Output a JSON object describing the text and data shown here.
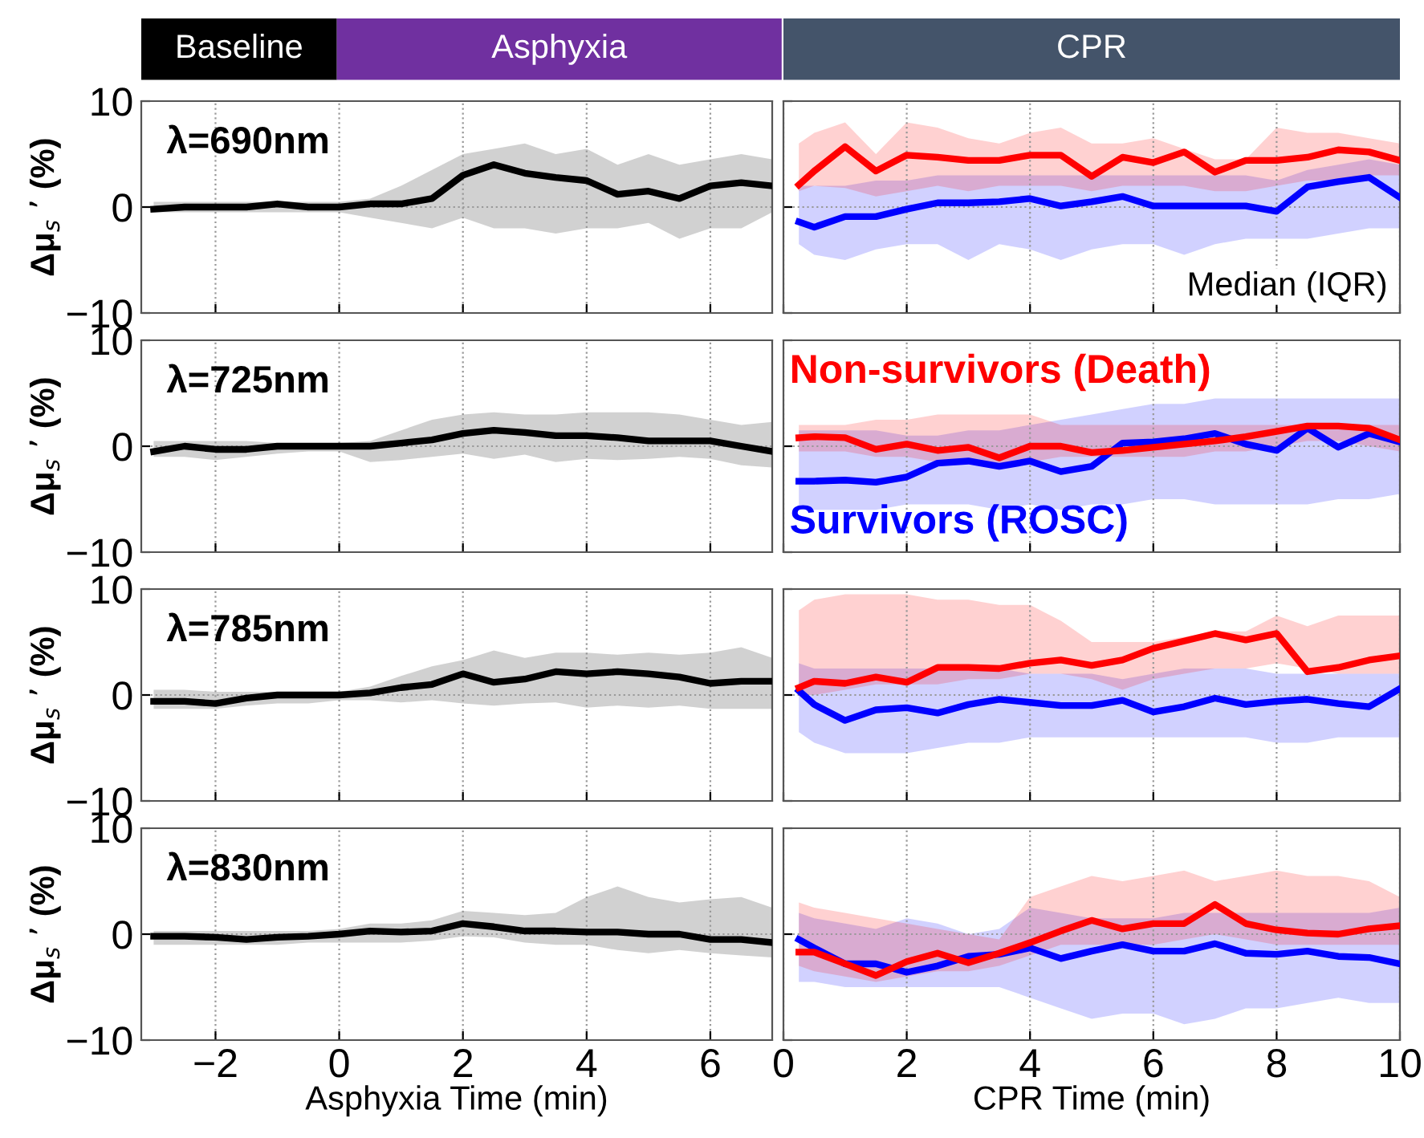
{
  "chart_data": [
    {
      "type": "line",
      "annotations": [
        "Baseline",
        "Asphyxia",
        "λ=690nm"
      ],
      "ylabel": "Δμ$_{s}$ ’ (%)",
      "tick_labels": "y",
      "grid": true,
      "xlim": [
        -3.2,
        7
      ],
      "xticks": [
        {
          "value": -2,
          "label": null
        },
        {
          "value": 0,
          "label": null
        },
        {
          "value": 2,
          "label": null
        },
        {
          "value": 4,
          "label": null
        },
        {
          "value": 6,
          "label": null
        }
      ],
      "ylim": [
        -10,
        10
      ],
      "yticks": [
        {
          "value": -10,
          "label": "−10"
        },
        0,
        10
      ],
      "x": [
        -3,
        -2.5,
        -2,
        -1.5,
        -1,
        -0.5,
        0,
        0.5,
        1,
        1.5,
        2,
        2.5,
        3,
        3.5,
        4,
        4.5,
        5,
        5.5,
        6,
        6.5,
        7
      ],
      "series": [
        {
          "color": "#000000",
          "values": [
            -0.2,
            0,
            0,
            0,
            0.3,
            0,
            0,
            0.3,
            0.3,
            0.8,
            3,
            4,
            3.2,
            2.8,
            2.5,
            1.2,
            1.5,
            0.8,
            2,
            2.3,
            2
          ],
          "upper": [
            0.5,
            0.5,
            0.5,
            0.5,
            0.5,
            0.5,
            0.5,
            0.8,
            2,
            3.5,
            5,
            5.5,
            6,
            5,
            5.5,
            4,
            5,
            4,
            4.5,
            5,
            4.5
          ],
          "lower": [
            -0.5,
            -0.5,
            -0.5,
            -0.5,
            -0.5,
            -0.5,
            -0.5,
            -1,
            -1.5,
            -2,
            -1,
            -2,
            -2,
            -2.5,
            -2,
            -2,
            -1.5,
            -3,
            -2,
            -2,
            -0.5
          ]
        }
      ]
    },
    {
      "type": "line",
      "annotations": [
        "CPR",
        "Median (IQR)"
      ],
      "tick_labels": false,
      "grid": true,
      "xlim": [
        0,
        10
      ],
      "xticks": [
        {
          "value": 0,
          "label": null
        },
        {
          "value": 2,
          "label": null
        },
        {
          "value": 4,
          "label": null
        },
        {
          "value": 6,
          "label": null
        },
        {
          "value": 8,
          "label": null
        },
        {
          "value": 10,
          "label": null
        }
      ],
      "ylim": [
        -10,
        10
      ],
      "yticks": [
        {
          "value": -10,
          "label": null
        },
        {
          "value": 0,
          "label": null
        },
        {
          "value": 10,
          "label": null
        }
      ],
      "x": [
        0.25,
        0.5,
        1,
        1.5,
        2,
        2.5,
        3,
        3.5,
        4,
        4.5,
        5,
        5.5,
        6,
        6.5,
        7,
        7.5,
        8,
        8.5,
        9,
        9.5,
        10
      ],
      "series": [
        {
          "color": "#0000ff",
          "values": [
            -1.4,
            -1.9,
            -0.9,
            -0.9,
            -0.2,
            0.4,
            0.4,
            0.5,
            0.8,
            0.1,
            0.5,
            1.0,
            0.1,
            0.1,
            0.1,
            0.1,
            -0.4,
            1.9,
            2.4,
            2.8,
            0.9
          ],
          "upper": [
            2,
            2,
            2,
            2.5,
            2.5,
            3,
            3,
            3,
            3,
            3,
            3,
            3,
            3,
            3,
            3,
            3,
            2.5,
            3.5,
            4,
            4.5,
            4
          ],
          "lower": [
            -3.5,
            -4.5,
            -5,
            -4,
            -3.5,
            -3.5,
            -5,
            -3.5,
            -4,
            -5,
            -4,
            -3.5,
            -3.5,
            -4.5,
            -3.5,
            -3,
            -3,
            -3,
            -2.5,
            -2,
            -2
          ]
        },
        {
          "color": "#ff0000",
          "values": [
            2.1,
            3.4,
            5.7,
            3.4,
            4.9,
            4.7,
            4.4,
            4.4,
            4.9,
            4.9,
            2.9,
            4.7,
            4.2,
            5.2,
            3.3,
            4.4,
            4.4,
            4.7,
            5.4,
            5.2,
            4.4
          ],
          "upper": [
            6,
            7,
            8,
            5,
            8,
            7.5,
            6.5,
            6,
            7,
            7.5,
            6,
            6,
            6.5,
            5.5,
            4.5,
            4.5,
            7.5,
            7,
            7,
            6.5,
            6
          ],
          "lower": [
            1.5,
            2,
            1.8,
            1,
            1.5,
            2,
            1.5,
            2,
            2,
            2,
            1.5,
            2,
            2,
            2,
            1.5,
            1.5,
            2,
            2.5,
            2.5,
            3,
            3
          ]
        }
      ]
    },
    {
      "type": "line",
      "annotations": [
        "λ=725nm"
      ],
      "ylabel": "Δμ$_{s}$ ’ (%)",
      "tick_labels": "y",
      "grid": true,
      "xlim": [
        -3.2,
        7
      ],
      "xticks": [
        {
          "value": -2,
          "label": null
        },
        {
          "value": 0,
          "label": null
        },
        {
          "value": 2,
          "label": null
        },
        {
          "value": 4,
          "label": null
        },
        {
          "value": 6,
          "label": null
        }
      ],
      "ylim": [
        -10,
        10
      ],
      "yticks": [
        {
          "value": -10,
          "label": "−10"
        },
        0,
        10
      ],
      "x": [
        -3,
        -2.5,
        -2,
        -1.5,
        -1,
        -0.5,
        0,
        0.5,
        1,
        1.5,
        2,
        2.5,
        3,
        3.5,
        4,
        4.5,
        5,
        5.5,
        6,
        6.5,
        7
      ],
      "series": [
        {
          "color": "#000000",
          "values": [
            -0.5,
            0,
            -0.3,
            -0.3,
            0,
            0,
            0,
            0,
            0.3,
            0.6,
            1.2,
            1.5,
            1.3,
            1,
            1,
            0.8,
            0.5,
            0.5,
            0.5,
            0,
            -0.5
          ],
          "upper": [
            0.5,
            0.5,
            0.5,
            0.5,
            0.3,
            0.3,
            0.3,
            0.5,
            1.5,
            2.5,
            3,
            3.2,
            3,
            3,
            3.2,
            3.2,
            3.2,
            3,
            2.5,
            2,
            2.3
          ],
          "lower": [
            -1,
            -1,
            -1.3,
            -1,
            -0.7,
            -0.5,
            -0.5,
            -1.5,
            -1.3,
            -1,
            -0.7,
            -1.2,
            -0.8,
            -1.5,
            -1.2,
            -1.3,
            -1.2,
            -1,
            -1.2,
            -1.8,
            -2
          ]
        }
      ]
    },
    {
      "type": "line",
      "tick_labels": false,
      "grid": true,
      "xlim": [
        0,
        10
      ],
      "xticks": [
        {
          "value": 0,
          "label": null
        },
        {
          "value": 2,
          "label": null
        },
        {
          "value": 4,
          "label": null
        },
        {
          "value": 6,
          "label": null
        },
        {
          "value": 8,
          "label": null
        },
        {
          "value": 10,
          "label": null
        }
      ],
      "ylim": [
        -10,
        10
      ],
      "yticks": [
        {
          "value": -10,
          "label": null
        },
        {
          "value": 0,
          "label": null
        },
        {
          "value": 10,
          "label": null
        }
      ],
      "x": [
        0.25,
        0.5,
        1,
        1.5,
        2,
        2.5,
        3,
        3.5,
        4,
        4.5,
        5,
        5.5,
        6,
        6.5,
        7,
        7.5,
        8,
        8.5,
        9,
        9.5,
        10
      ],
      "series": [
        {
          "name": "Survivors (ROSC)",
          "color": "#0000ff",
          "values": [
            -3.3,
            -3.3,
            -3.2,
            -3.4,
            -2.9,
            -1.6,
            -1.4,
            -1.9,
            -1.4,
            -2.4,
            -1.9,
            0.3,
            0.4,
            0.7,
            1.2,
            0.2,
            -0.4,
            1.7,
            -0.1,
            1.2,
            0.4
          ],
          "upper": [
            1.5,
            1.5,
            1.5,
            1.5,
            1,
            1,
            1.5,
            1.5,
            2,
            2.5,
            3,
            3.5,
            4,
            4,
            4.5,
            4.5,
            4.5,
            4.5,
            4.5,
            4.5,
            4.5
          ],
          "lower": [
            -6,
            -6,
            -6,
            -6,
            -5.5,
            -5.5,
            -5.5,
            -6,
            -5.5,
            -6,
            -5.5,
            -5.5,
            -5,
            -5,
            -5.5,
            -5.5,
            -5.5,
            -5.5,
            -5,
            -5,
            -4.5
          ]
        },
        {
          "name": "Non-survivors (Death)",
          "color": "#ff0000",
          "values": [
            0.8,
            0.9,
            0.8,
            -0.3,
            0.2,
            -0.4,
            -0.1,
            -1.1,
            0,
            0,
            -0.6,
            -0.4,
            -0.1,
            0.2,
            0.5,
            0.9,
            1.4,
            1.9,
            1.9,
            1.7,
            0.6
          ],
          "upper": [
            2,
            2,
            2,
            2.5,
            2.5,
            3,
            3,
            3,
            3,
            2,
            2,
            2,
            2,
            2,
            2,
            2,
            2,
            2,
            2,
            2,
            2
          ],
          "lower": [
            -0.5,
            -0.5,
            -0.5,
            -1,
            -1,
            -1.5,
            -1.5,
            -2,
            -1.5,
            -1,
            -1,
            -1,
            -1,
            -1,
            -0.5,
            -0.5,
            0,
            0.5,
            0.5,
            0,
            -0.5
          ]
        }
      ]
    },
    {
      "type": "line",
      "annotations": [
        "λ=785nm"
      ],
      "ylabel": "Δμ$_{s}$ ’ (%)",
      "tick_labels": "y",
      "grid": true,
      "xlim": [
        -3.2,
        7
      ],
      "xticks": [
        {
          "value": -2,
          "label": null
        },
        {
          "value": 0,
          "label": null
        },
        {
          "value": 2,
          "label": null
        },
        {
          "value": 4,
          "label": null
        },
        {
          "value": 6,
          "label": null
        }
      ],
      "ylim": [
        -10,
        10
      ],
      "yticks": [
        {
          "value": -10,
          "label": "−10"
        },
        0,
        10
      ],
      "x": [
        -3,
        -2.5,
        -2,
        -1.5,
        -1,
        -0.5,
        0,
        0.5,
        1,
        1.5,
        2,
        2.5,
        3,
        3.5,
        4,
        4.5,
        5,
        5.5,
        6,
        6.5,
        7
      ],
      "series": [
        {
          "color": "#000000",
          "values": [
            -0.6,
            -0.6,
            -0.8,
            -0.3,
            0,
            0,
            0,
            0.2,
            0.7,
            1,
            2,
            1.2,
            1.5,
            2.2,
            2,
            2.2,
            2,
            1.7,
            1.1,
            1.3,
            1.3
          ],
          "upper": [
            0.5,
            0.5,
            0.3,
            0.3,
            0.3,
            0.3,
            0.3,
            0.8,
            1.8,
            2.7,
            3.3,
            4.2,
            3.5,
            4,
            4,
            3.8,
            4,
            3.8,
            4,
            4.5,
            3.5
          ],
          "lower": [
            -1.3,
            -1.3,
            -1.3,
            -1,
            -0.8,
            -0.8,
            -0.5,
            -0.5,
            -0.7,
            -0.5,
            -0.8,
            -1,
            -0.8,
            -0.7,
            -1.2,
            -1,
            -1.2,
            -1,
            -1.3,
            -1.3,
            -1.3
          ]
        }
      ]
    },
    {
      "type": "line",
      "tick_labels": false,
      "grid": true,
      "xlim": [
        0,
        10
      ],
      "xticks": [
        {
          "value": 0,
          "label": null
        },
        {
          "value": 2,
          "label": null
        },
        {
          "value": 4,
          "label": null
        },
        {
          "value": 6,
          "label": null
        },
        {
          "value": 8,
          "label": null
        },
        {
          "value": 10,
          "label": null
        }
      ],
      "ylim": [
        -10,
        10
      ],
      "yticks": [
        {
          "value": -10,
          "label": null
        },
        {
          "value": 0,
          "label": null
        },
        {
          "value": 10,
          "label": null
        }
      ],
      "x": [
        0.25,
        0.5,
        1,
        1.5,
        2,
        2.5,
        3,
        3.5,
        4,
        4.5,
        5,
        5.5,
        6,
        6.5,
        7,
        7.5,
        8,
        8.5,
        9,
        9.5,
        10
      ],
      "series": [
        {
          "color": "#0000ff",
          "values": [
            0.4,
            -0.9,
            -2.4,
            -1.4,
            -1.2,
            -1.7,
            -0.9,
            -0.4,
            -0.7,
            -1.0,
            -1.0,
            -0.5,
            -1.6,
            -1.1,
            -0.3,
            -0.9,
            -0.6,
            -0.4,
            -0.8,
            -1.1,
            0.6
          ],
          "upper": [
            3,
            2.5,
            2.5,
            2.5,
            2.5,
            2.5,
            2.5,
            2.5,
            2,
            2,
            2,
            1.5,
            2,
            2.5,
            2.5,
            2.5,
            2,
            2,
            2,
            2,
            2
          ],
          "lower": [
            -3.5,
            -4.5,
            -5.5,
            -5.5,
            -5.5,
            -5,
            -4.5,
            -4.5,
            -4,
            -4,
            -4,
            -4,
            -4,
            -4,
            -4,
            -4,
            -4.5,
            -4.5,
            -4,
            -4,
            -4
          ]
        },
        {
          "color": "#ff0000",
          "values": [
            0.7,
            1.3,
            1.1,
            1.7,
            1.2,
            2.6,
            2.6,
            2.5,
            3.0,
            3.3,
            2.8,
            3.3,
            4.4,
            5.1,
            5.8,
            5.2,
            5.8,
            2.2,
            2.6,
            3.3,
            3.7
          ],
          "upper": [
            8,
            9,
            9.5,
            9.5,
            9.5,
            9,
            9,
            8.5,
            8.5,
            7,
            5,
            5,
            5,
            5.5,
            6,
            6,
            7.5,
            6.5,
            7.5,
            7.5,
            7.5
          ],
          "lower": [
            0,
            0,
            0.5,
            1,
            1,
            1,
            1.5,
            1.5,
            2,
            2,
            1.5,
            0.5,
            1.5,
            2,
            2.5,
            2.5,
            3,
            2.5,
            2,
            2,
            2
          ]
        }
      ]
    },
    {
      "type": "line",
      "annotations": [
        "λ=830nm"
      ],
      "ylabel": "Δμ$_{s}$ ’ (%)",
      "xlabel": "Asphyxia Time (min)",
      "grid": true,
      "xlim": [
        -3.2,
        7
      ],
      "xticks": [
        {
          "value": -2,
          "label": "−2"
        },
        0,
        2,
        4,
        6
      ],
      "ylim": [
        -10,
        10
      ],
      "yticks": [
        {
          "value": -10,
          "label": "−10"
        },
        0,
        10
      ],
      "x": [
        -3,
        -2.5,
        -2,
        -1.5,
        -1,
        -0.5,
        0,
        0.5,
        1,
        1.5,
        2,
        2.5,
        3,
        3.5,
        4,
        4.5,
        5,
        5.5,
        6,
        6.5,
        7
      ],
      "series": [
        {
          "color": "#000000",
          "values": [
            -0.2,
            -0.2,
            -0.3,
            -0.5,
            -0.3,
            -0.2,
            0,
            0.3,
            0.2,
            0.3,
            1,
            0.7,
            0.3,
            0.3,
            0.2,
            0.2,
            0,
            0,
            -0.5,
            -0.5,
            -0.8
          ],
          "upper": [
            0.3,
            0.3,
            0.3,
            0.3,
            0.3,
            0.3,
            0.5,
            1,
            1,
            1.3,
            2.2,
            2,
            1.8,
            2,
            3.5,
            4.5,
            3.5,
            3,
            3.3,
            3.5,
            2.5
          ],
          "lower": [
            -1,
            -1,
            -1,
            -1,
            -1,
            -0.8,
            -0.8,
            -0.8,
            -0.8,
            -0.6,
            -0.2,
            -0.3,
            -0.8,
            -1,
            -1,
            -1.5,
            -1.8,
            -1.5,
            -1.8,
            -2,
            -2.2
          ]
        }
      ]
    },
    {
      "type": "line",
      "xlabel": "CPR Time (min)",
      "tick_labels": "x",
      "grid": true,
      "xlim": [
        0,
        10
      ],
      "xticks": [
        0,
        2,
        4,
        6,
        8,
        10
      ],
      "ylim": [
        -10,
        10
      ],
      "yticks": [
        {
          "value": -10,
          "label": null
        },
        {
          "value": 0,
          "label": null
        },
        {
          "value": 10,
          "label": null
        }
      ],
      "x": [
        0.25,
        0.5,
        1,
        1.5,
        2,
        2.5,
        3,
        3.5,
        4,
        4.5,
        5,
        5.5,
        6,
        6.5,
        7,
        7.5,
        8,
        8.5,
        9,
        9.5,
        10
      ],
      "series": [
        {
          "color": "#0000ff",
          "values": [
            -0.5,
            -1.3,
            -2.8,
            -2.8,
            -3.6,
            -3.0,
            -2.1,
            -1.9,
            -1.3,
            -2.3,
            -1.6,
            -1.0,
            -1.6,
            -1.6,
            -0.9,
            -1.8,
            -1.9,
            -1.6,
            -2.1,
            -2.2,
            -2.8
          ],
          "upper": [
            2,
            1.5,
            1,
            0.5,
            1.5,
            1,
            0,
            0.5,
            2.5,
            2,
            1.5,
            1.5,
            1.5,
            2,
            2,
            2,
            2,
            2,
            2,
            2,
            2.5
          ],
          "lower": [
            -4.5,
            -4.5,
            -5,
            -5,
            -5,
            -5,
            -5,
            -5,
            -6,
            -7,
            -8,
            -7.5,
            -7.5,
            -8.5,
            -8,
            -7,
            -7,
            -6.5,
            -6,
            -6.5,
            -6.5
          ]
        },
        {
          "color": "#ff0000",
          "values": [
            -1.7,
            -1.7,
            -2.8,
            -3.9,
            -2.6,
            -1.8,
            -2.7,
            -1.8,
            -0.8,
            0.3,
            1.3,
            0.5,
            1.0,
            1.0,
            2.8,
            1.0,
            0.4,
            0.1,
            0,
            0.5,
            0.8
          ],
          "upper": [
            3,
            2.5,
            2,
            1.5,
            1,
            0.5,
            0,
            -0.5,
            3.5,
            4.5,
            5.5,
            5,
            5.5,
            6,
            5,
            5.5,
            6,
            5.5,
            5.5,
            5,
            3.5
          ],
          "lower": [
            -3,
            -3.5,
            -4,
            -4.5,
            -4,
            -3.5,
            -3.5,
            -3,
            -2,
            -1,
            -1,
            -1,
            -1,
            -0.5,
            0,
            -0.5,
            -1,
            -1,
            -1,
            -1,
            -1
          ]
        }
      ]
    }
  ]
}
